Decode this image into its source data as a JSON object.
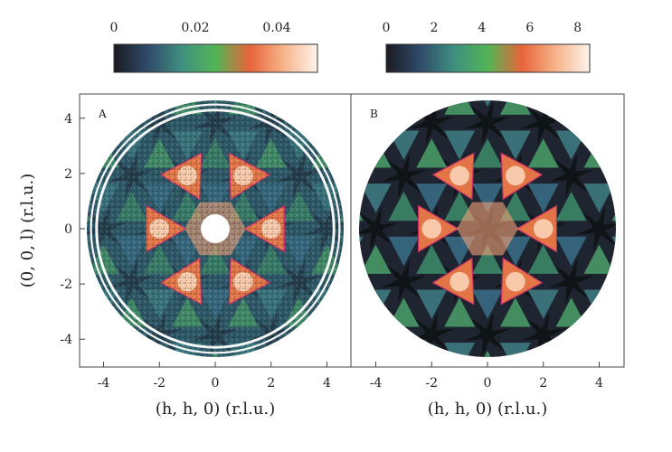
{
  "chart_data": [
    {
      "type": "heatmap",
      "panel_label": "A",
      "xlabel": "(h, h, 0) (r.l.u.)",
      "ylabel": "(0, 0, l) (r.l.u.)",
      "xlim": [
        -4.6,
        4.6
      ],
      "ylim": [
        -6.0,
        6.0
      ],
      "x_ticks": [
        "-4",
        "-2",
        "0",
        "2",
        "4"
      ],
      "y_ticks": [
        "-4",
        "-2",
        "0",
        "2",
        "4"
      ],
      "colorbar": {
        "range": [
          0,
          0.05
        ],
        "tick_labels": [
          "0",
          "0.02",
          "0.04"
        ],
        "tick_values": [
          0,
          0.02,
          0.04
        ]
      },
      "colormap": [
        "#1b1b22",
        "#2f4a6a",
        "#3f8f7f",
        "#52b556",
        "#e8643a",
        "#f6b38a",
        "#fff4ec"
      ],
      "data_radius": 4.6,
      "central_hole_radius": 0.45,
      "masked_powder_rings_radius": [
        4.25,
        4.45,
        4.9,
        5.3
      ],
      "hot_spots": [
        [
          2.0,
          0.0
        ],
        [
          -2.0,
          0.0
        ],
        [
          1.0,
          1.9
        ],
        [
          -1.0,
          1.9
        ],
        [
          1.0,
          -1.9
        ],
        [
          -1.0,
          -1.9
        ]
      ]
    },
    {
      "type": "heatmap",
      "panel_label": "B",
      "xlabel": "(h, h, 0) (r.l.u.)",
      "ylabel": "",
      "xlim": [
        -4.6,
        4.6
      ],
      "ylim": [
        -6.0,
        6.0
      ],
      "x_ticks": [
        "-4",
        "-2",
        "0",
        "2",
        "4"
      ],
      "colorbar": {
        "range": [
          0,
          8.5
        ],
        "tick_labels": [
          "0",
          "2",
          "4",
          "6",
          "8"
        ],
        "tick_values": [
          0,
          2,
          4,
          6,
          8
        ]
      },
      "colormap": [
        "#1b1b22",
        "#2f4a6a",
        "#3f8f7f",
        "#52b556",
        "#e8643a",
        "#f6b38a",
        "#fff4ec"
      ],
      "data_radius": 4.6,
      "hot_spots": [
        [
          2.0,
          0.0
        ],
        [
          -2.0,
          0.0
        ],
        [
          1.0,
          1.9
        ],
        [
          -1.0,
          1.9
        ],
        [
          1.0,
          -1.9
        ],
        [
          -1.0,
          -1.9
        ]
      ]
    }
  ]
}
